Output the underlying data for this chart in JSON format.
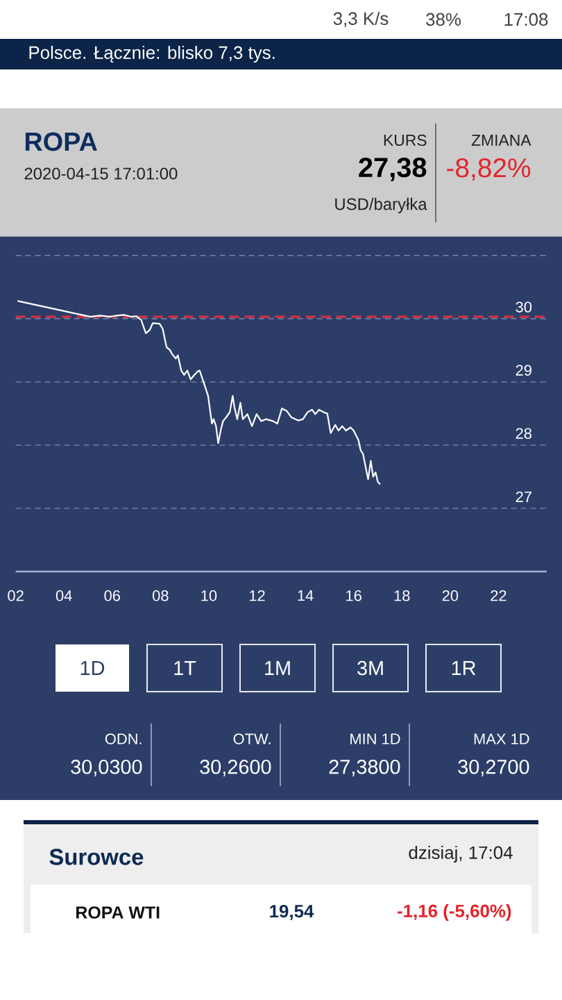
{
  "chart_data": {
    "type": "line",
    "title": "ROPA",
    "subtitle": "2020-04-15 17:01:00",
    "annotations": [
      "3,3 K/s",
      "38%",
      "17:08",
      "Polsce. Łącznie: blisko 7,3 tys.",
      "KURS",
      "27,38",
      "USD/baryłka",
      "ZMIANA",
      "-8,82%",
      "1D",
      "1T",
      "1M",
      "3M",
      "1R",
      "ODN.",
      "30,0300",
      "OTW.",
      "30,2600",
      "MIN 1D",
      "27,3800",
      "MAX 1D",
      "30,2700",
      "Surowce",
      "dzisiaj, 17:04",
      "ROPA WTI",
      "19,54",
      "-1,16 (-5,60%)"
    ],
    "x": [
      2.08,
      5.09,
      5.5,
      5.9,
      6.2,
      6.5,
      6.8,
      7.0,
      7.2,
      7.39,
      7.55,
      7.68,
      7.96,
      8.09,
      8.25,
      8.4,
      8.48,
      8.63,
      8.72,
      8.86,
      8.98,
      9.11,
      9.25,
      9.4,
      9.55,
      9.62,
      9.78,
      9.97,
      10.13,
      10.2,
      10.3,
      10.39,
      10.51,
      10.59,
      10.74,
      10.87,
      10.99,
      11.06,
      11.18,
      11.31,
      11.41,
      11.6,
      11.79,
      11.98,
      12.17,
      12.37,
      12.66,
      12.84,
      13.03,
      13.23,
      13.42,
      13.71,
      13.9,
      14.09,
      14.28,
      14.41,
      14.57,
      14.76,
      14.91,
      15.05,
      15.24,
      15.37,
      15.53,
      15.68,
      15.87,
      16.0,
      16.2,
      16.29,
      16.39,
      16.52,
      16.6,
      16.71,
      16.81,
      16.91,
      17.0,
      17.1
    ],
    "values": [
      30.28,
      30.03,
      30.05,
      30.03,
      30.05,
      30.06,
      30.03,
      30.04,
      29.98,
      29.77,
      29.82,
      29.93,
      29.92,
      29.84,
      29.55,
      29.5,
      29.44,
      29.37,
      29.42,
      29.18,
      29.11,
      29.18,
      29.04,
      29.11,
      29.17,
      29.18,
      29.0,
      28.78,
      28.34,
      28.41,
      28.3,
      28.03,
      28.26,
      28.38,
      28.45,
      28.52,
      28.78,
      28.6,
      28.41,
      28.67,
      28.41,
      28.49,
      28.3,
      28.49,
      28.38,
      28.41,
      28.38,
      28.34,
      28.58,
      28.54,
      28.44,
      28.39,
      28.41,
      28.52,
      28.56,
      28.49,
      28.56,
      28.52,
      28.5,
      28.19,
      28.32,
      28.23,
      28.3,
      28.23,
      28.28,
      28.23,
      28.08,
      27.92,
      27.86,
      27.61,
      27.46,
      27.75,
      27.5,
      27.57,
      27.42,
      27.38
    ],
    "color": "#ffffff",
    "xlim": [
      2,
      24
    ],
    "xticks": [
      {
        "value": 2,
        "label": "02"
      },
      {
        "value": 4,
        "label": "04"
      },
      {
        "value": 6,
        "label": "06"
      },
      {
        "value": 8,
        "label": "08"
      },
      {
        "value": 10,
        "label": "10"
      },
      {
        "value": 12,
        "label": "12"
      },
      {
        "value": 14,
        "label": "14"
      },
      {
        "value": 16,
        "label": "16"
      },
      {
        "value": 18,
        "label": "18"
      },
      {
        "value": 20,
        "label": "20"
      },
      {
        "value": 22,
        "label": "22"
      }
    ],
    "ylim": [
      26,
      31.3
    ],
    "yticks": [
      27,
      28,
      29,
      30,
      {
        "value": 31,
        "label": null
      }
    ],
    "grid": "y",
    "ref_lines": [
      {
        "axis": "y",
        "value": 30.03,
        "color": "#d52f43",
        "line_style": "dashed"
      }
    ]
  }
}
